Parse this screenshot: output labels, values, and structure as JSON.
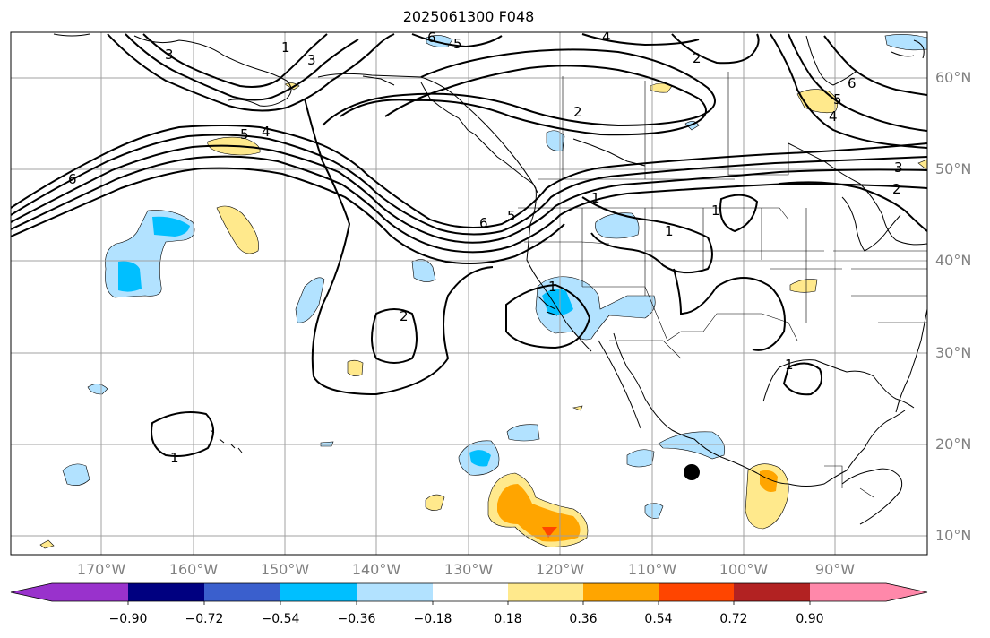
{
  "title": "2025061300 F048",
  "lat_labels": [
    "60°N",
    "50°N",
    "40°N",
    "30°N",
    "20°N",
    "10°N"
  ],
  "lon_labels": [
    "170°W",
    "160°W",
    "150°W",
    "140°W",
    "130°W",
    "120°W",
    "110°W",
    "100°W",
    "90°W"
  ],
  "colorbar": {
    "tick_labels": [
      "−0.90",
      "−0.72",
      "−0.54",
      "−0.36",
      "−0.18",
      "0.18",
      "0.36",
      "0.54",
      "0.72",
      "0.90"
    ],
    "colors": [
      "#9932cc",
      "#000080",
      "#3a5fcd",
      "#00bfff",
      "#b2e2ff",
      "#ffffff",
      "#ffe98c",
      "#ffa500",
      "#ff4500",
      "#b22222",
      "#ff88aa"
    ]
  },
  "contour_labels": [
    "1",
    "2",
    "3",
    "4",
    "5",
    "6"
  ],
  "map": {
    "projection": "equirectangular",
    "lon_range": [
      -178,
      -78
    ],
    "lat_range": [
      8,
      65
    ],
    "grid": true,
    "marker": "black dot",
    "colors": {
      "land_outline": "#000000",
      "grid": "#a0a0a0",
      "contour": "#000000"
    }
  }
}
